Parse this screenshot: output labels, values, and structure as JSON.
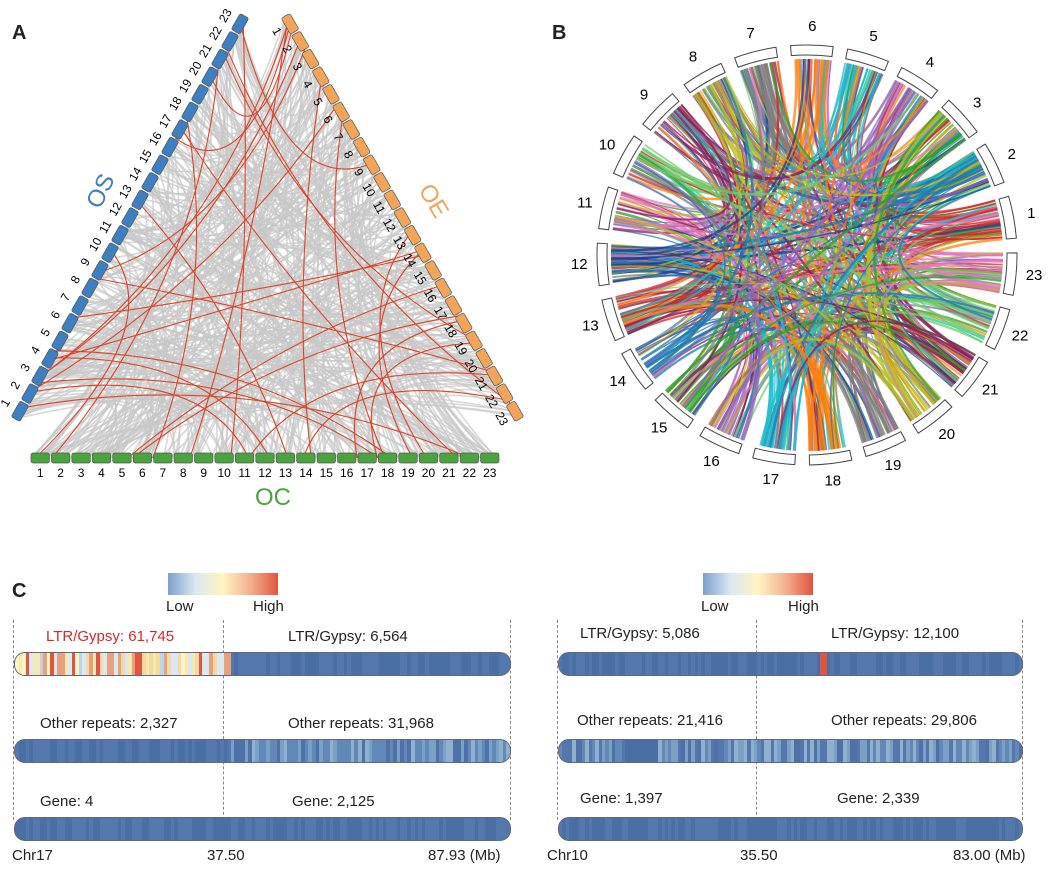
{
  "panels": {
    "a": "A",
    "b": "B",
    "c": "C"
  },
  "triangle": {
    "os_label": "OS",
    "oe_label": "OE",
    "oc_label": "OC",
    "chromosomes": [
      "1",
      "2",
      "3",
      "4",
      "5",
      "6",
      "7",
      "8",
      "9",
      "10",
      "11",
      "12",
      "13",
      "14",
      "15",
      "16",
      "17",
      "18",
      "19",
      "20",
      "21",
      "22",
      "23"
    ],
    "colors": {
      "os": "#3d7fc1",
      "oe": "#f2a45a",
      "oc": "#4aa33f",
      "links": "#c8c8c8",
      "highlight": "#d9452b"
    }
  },
  "circos": {
    "chromosomes": [
      "1",
      "2",
      "3",
      "4",
      "5",
      "6",
      "7",
      "8",
      "9",
      "10",
      "11",
      "12",
      "13",
      "14",
      "15",
      "16",
      "17",
      "18",
      "19",
      "20",
      "21",
      "22",
      "23"
    ],
    "link_colors": [
      "#d62728",
      "#1f77b4",
      "#2ca02c",
      "#9467bd",
      "#17becf",
      "#ff7f0e",
      "#7f7f7f",
      "#bcbd22",
      "#8c1d5c",
      "#6fcf6f",
      "#e377c2",
      "#1a3d8f"
    ]
  },
  "heatmap": {
    "legend_low": "Low",
    "legend_high": "High",
    "colors": {
      "base": "#4a6fa5",
      "low": "#7d9fcf",
      "mid": "#fff4c2",
      "high": "#e0553f"
    },
    "left": {
      "chrom": "Chr17",
      "mid_pos": "37.50",
      "end_pos": "87.93 (Mb)",
      "ltr_a": "LTR/Gypsy: 61,745",
      "ltr_b": "LTR/Gypsy: 6,564",
      "rep_a": "Other repeats: 2,327",
      "rep_b": "Other repeats: 31,968",
      "gene_a": "Gene: 4",
      "gene_b": "Gene: 2,125",
      "highlight_color": "#d62728"
    },
    "right": {
      "chrom": "Chr10",
      "mid_pos": "35.50",
      "end_pos": "83.00 (Mb)",
      "ltr_a": "LTR/Gypsy: 5,086",
      "ltr_b": "LTR/Gypsy: 12,100",
      "rep_a": "Other repeats: 21,416",
      "rep_b": "Other repeats: 29,806",
      "gene_a": "Gene: 1,397",
      "gene_b": "Gene: 2,339"
    }
  }
}
